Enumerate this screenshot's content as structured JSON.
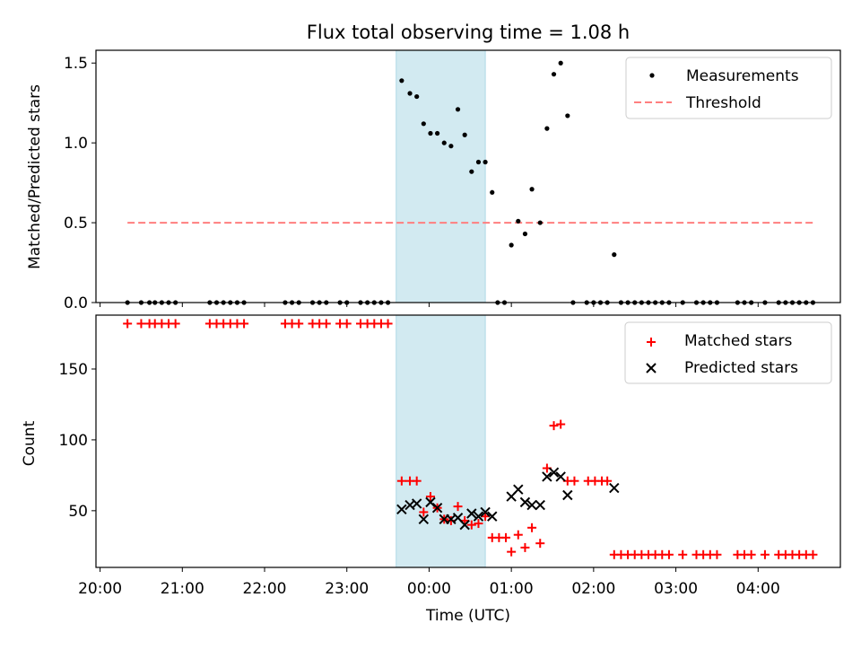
{
  "figure": {
    "title": "Flux total observing time = 1.08 h"
  },
  "colors": {
    "measurement": "#000000",
    "threshold": "#ff7f7f",
    "matched": "#ff0000",
    "predicted": "#000000",
    "highlight": "#add8e6"
  },
  "chart_data": [
    {
      "type": "scatter",
      "panel": "top",
      "ylabel": "Matched/Predicted stars",
      "xlabel": "",
      "xlim": [
        "19:57",
        "05:00"
      ],
      "ylim": [
        0,
        1.58
      ],
      "yticks": [
        0.0,
        0.5,
        1.0,
        1.5
      ],
      "ytick_labels": [
        "0.0",
        "0.5",
        "1.0",
        "1.5"
      ],
      "legend_position": "top-right",
      "highlight_span": [
        "23:36",
        "00:41"
      ],
      "series": [
        {
          "name": "Measurements",
          "kind": "points",
          "points": [
            [
              "20:20",
              0
            ],
            [
              "20:30",
              0
            ],
            [
              "20:36",
              0
            ],
            [
              "20:40",
              0
            ],
            [
              "20:45",
              0
            ],
            [
              "20:50",
              0
            ],
            [
              "20:55",
              0
            ],
            [
              "21:20",
              0
            ],
            [
              "21:25",
              0
            ],
            [
              "21:30",
              0
            ],
            [
              "21:35",
              0
            ],
            [
              "21:40",
              0
            ],
            [
              "21:45",
              0
            ],
            [
              "22:15",
              0
            ],
            [
              "22:20",
              0
            ],
            [
              "22:25",
              0
            ],
            [
              "22:35",
              0
            ],
            [
              "22:40",
              0
            ],
            [
              "22:45",
              0
            ],
            [
              "22:55",
              0
            ],
            [
              "23:00",
              0
            ],
            [
              "23:10",
              0
            ],
            [
              "23:15",
              0
            ],
            [
              "23:20",
              0
            ],
            [
              "23:25",
              0
            ],
            [
              "23:30",
              0
            ],
            [
              "23:40",
              1.39
            ],
            [
              "23:46",
              1.31
            ],
            [
              "23:51",
              1.29
            ],
            [
              "23:56",
              1.12
            ],
            [
              "00:01",
              1.06
            ],
            [
              "00:06",
              1.06
            ],
            [
              "00:11",
              1.0
            ],
            [
              "00:16",
              0.98
            ],
            [
              "00:21",
              1.21
            ],
            [
              "00:26",
              1.05
            ],
            [
              "00:31",
              0.82
            ],
            [
              "00:36",
              0.88
            ],
            [
              "00:41",
              0.88
            ],
            [
              "00:46",
              0.69
            ],
            [
              "00:50",
              0
            ],
            [
              "00:55",
              0
            ],
            [
              "01:00",
              0.36
            ],
            [
              "01:05",
              0.51
            ],
            [
              "01:10",
              0.43
            ],
            [
              "01:15",
              0.71
            ],
            [
              "01:21",
              0.5
            ],
            [
              "01:26",
              1.09
            ],
            [
              "01:31",
              1.43
            ],
            [
              "01:36",
              1.5
            ],
            [
              "01:41",
              1.17
            ],
            [
              "01:45",
              0
            ],
            [
              "01:55",
              0
            ],
            [
              "02:00",
              0
            ],
            [
              "02:05",
              0
            ],
            [
              "02:10",
              0
            ],
            [
              "02:15",
              0.3
            ],
            [
              "02:20",
              0
            ],
            [
              "02:25",
              0
            ],
            [
              "02:30",
              0
            ],
            [
              "02:35",
              0
            ],
            [
              "02:40",
              0
            ],
            [
              "02:45",
              0
            ],
            [
              "02:50",
              0
            ],
            [
              "02:55",
              0
            ],
            [
              "03:05",
              0
            ],
            [
              "03:15",
              0
            ],
            [
              "03:20",
              0
            ],
            [
              "03:25",
              0
            ],
            [
              "03:30",
              0
            ],
            [
              "03:45",
              0
            ],
            [
              "03:50",
              0
            ],
            [
              "03:55",
              0
            ],
            [
              "04:05",
              0
            ],
            [
              "04:15",
              0
            ],
            [
              "04:20",
              0
            ],
            [
              "04:25",
              0
            ],
            [
              "04:30",
              0
            ],
            [
              "04:35",
              0
            ],
            [
              "04:40",
              0
            ]
          ]
        },
        {
          "name": "Threshold",
          "kind": "dashed-line",
          "points": [
            [
              "20:20",
              0.5
            ],
            [
              "04:40",
              0.5
            ]
          ]
        }
      ]
    },
    {
      "type": "scatter",
      "panel": "bottom",
      "ylabel": "Count",
      "xlabel": "Time (UTC)",
      "xlim": [
        "19:57",
        "05:00"
      ],
      "ylim": [
        10,
        188
      ],
      "yticks": [
        50,
        100,
        150
      ],
      "ytick_labels": [
        "50",
        "100",
        "150"
      ],
      "xticks": [
        "20:00",
        "21:00",
        "22:00",
        "23:00",
        "00:00",
        "01:00",
        "02:00",
        "03:00",
        "04:00"
      ],
      "xtick_labels": [
        "20:00",
        "21:00",
        "22:00",
        "23:00",
        "00:00",
        "01:00",
        "02:00",
        "03:00",
        "04:00"
      ],
      "legend_position": "top-right",
      "highlight_span": [
        "23:36",
        "00:41"
      ],
      "series": [
        {
          "name": "Matched stars",
          "marker": "plus",
          "points": [
            [
              "20:20",
              182
            ],
            [
              "20:30",
              182
            ],
            [
              "20:36",
              182
            ],
            [
              "20:40",
              182
            ],
            [
              "20:45",
              182
            ],
            [
              "20:50",
              182
            ],
            [
              "20:55",
              182
            ],
            [
              "21:20",
              182
            ],
            [
              "21:25",
              182
            ],
            [
              "21:30",
              182
            ],
            [
              "21:35",
              182
            ],
            [
              "21:40",
              182
            ],
            [
              "21:45",
              182
            ],
            [
              "22:15",
              182
            ],
            [
              "22:20",
              182
            ],
            [
              "22:25",
              182
            ],
            [
              "22:35",
              182
            ],
            [
              "22:40",
              182
            ],
            [
              "22:45",
              182
            ],
            [
              "22:55",
              182
            ],
            [
              "23:00",
              182
            ],
            [
              "23:10",
              182
            ],
            [
              "23:15",
              182
            ],
            [
              "23:20",
              182
            ],
            [
              "23:25",
              182
            ],
            [
              "23:30",
              182
            ],
            [
              "23:40",
              71
            ],
            [
              "23:46",
              71
            ],
            [
              "23:51",
              71
            ],
            [
              "23:56",
              49
            ],
            [
              "00:01",
              60
            ],
            [
              "00:06",
              52
            ],
            [
              "00:11",
              44
            ],
            [
              "00:16",
              43
            ],
            [
              "00:21",
              53
            ],
            [
              "00:26",
              43
            ],
            [
              "00:31",
              40
            ],
            [
              "00:36",
              41
            ],
            [
              "00:41",
              46
            ],
            [
              "00:46",
              31
            ],
            [
              "00:51",
              31
            ],
            [
              "00:56",
              31
            ],
            [
              "01:00",
              21
            ],
            [
              "01:05",
              33
            ],
            [
              "01:10",
              24
            ],
            [
              "01:15",
              38
            ],
            [
              "01:21",
              27
            ],
            [
              "01:26",
              80
            ],
            [
              "01:31",
              110
            ],
            [
              "01:36",
              111
            ],
            [
              "01:41",
              71
            ],
            [
              "01:46",
              71
            ],
            [
              "01:56",
              71
            ],
            [
              "02:01",
              71
            ],
            [
              "02:06",
              71
            ],
            [
              "02:10",
              71
            ],
            [
              "02:15",
              19
            ],
            [
              "02:20",
              19
            ],
            [
              "02:25",
              19
            ],
            [
              "02:30",
              19
            ],
            [
              "02:35",
              19
            ],
            [
              "02:40",
              19
            ],
            [
              "02:45",
              19
            ],
            [
              "02:50",
              19
            ],
            [
              "02:55",
              19
            ],
            [
              "03:05",
              19
            ],
            [
              "03:15",
              19
            ],
            [
              "03:20",
              19
            ],
            [
              "03:25",
              19
            ],
            [
              "03:30",
              19
            ],
            [
              "03:45",
              19
            ],
            [
              "03:50",
              19
            ],
            [
              "03:55",
              19
            ],
            [
              "04:05",
              19
            ],
            [
              "04:15",
              19
            ],
            [
              "04:20",
              19
            ],
            [
              "04:25",
              19
            ],
            [
              "04:30",
              19
            ],
            [
              "04:35",
              19
            ],
            [
              "04:40",
              19
            ]
          ]
        },
        {
          "name": "Predicted stars",
          "marker": "x",
          "points": [
            [
              "23:40",
              51
            ],
            [
              "23:46",
              54
            ],
            [
              "23:51",
              55
            ],
            [
              "23:56",
              44
            ],
            [
              "00:01",
              56
            ],
            [
              "00:06",
              52
            ],
            [
              "00:11",
              44
            ],
            [
              "00:16",
              44
            ],
            [
              "00:21",
              45
            ],
            [
              "00:26",
              40
            ],
            [
              "00:31",
              48
            ],
            [
              "00:36",
              46
            ],
            [
              "00:41",
              49
            ],
            [
              "00:46",
              46
            ],
            [
              "01:00",
              60
            ],
            [
              "01:05",
              65
            ],
            [
              "01:10",
              56
            ],
            [
              "01:15",
              54
            ],
            [
              "01:21",
              54
            ],
            [
              "01:26",
              74
            ],
            [
              "01:31",
              77
            ],
            [
              "01:36",
              74
            ],
            [
              "01:41",
              61
            ],
            [
              "02:15",
              66
            ]
          ]
        }
      ]
    }
  ]
}
